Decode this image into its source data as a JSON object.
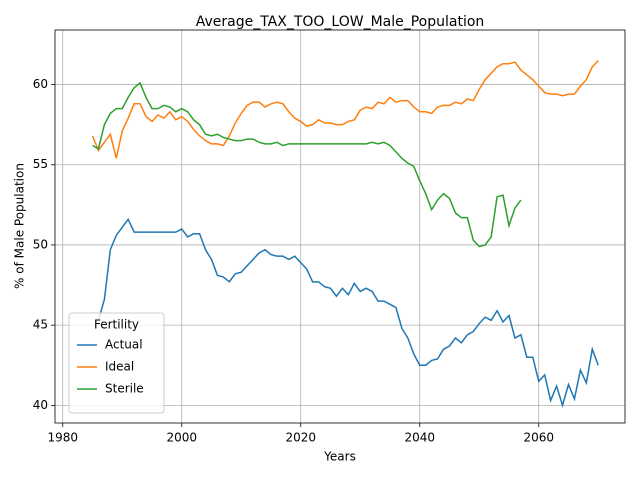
{
  "chart_data": {
    "type": "line",
    "title": "Average_TAX_TOO_LOW_Male_Population",
    "x_label": "Years",
    "y_label": "% of Male Population",
    "legend_title": "Fertility",
    "legend_position": "lower left",
    "grid": true,
    "xlim": [
      1978.7,
      2074.5
    ],
    "ylim": [
      38.9,
      63.4
    ],
    "xticks": [
      1980,
      2000,
      2020,
      2040,
      2060
    ],
    "yticks": [
      40,
      45,
      50,
      55,
      60
    ],
    "x": [
      1985,
      1986,
      1987,
      1988,
      1989,
      1990,
      1991,
      1992,
      1993,
      1994,
      1995,
      1996,
      1997,
      1998,
      1999,
      2000,
      2001,
      2002,
      2003,
      2004,
      2005,
      2006,
      2007,
      2008,
      2009,
      2010,
      2011,
      2012,
      2013,
      2014,
      2015,
      2016,
      2017,
      2018,
      2019,
      2020,
      2021,
      2022,
      2023,
      2024,
      2025,
      2026,
      2027,
      2028,
      2029,
      2030,
      2031,
      2032,
      2033,
      2034,
      2035,
      2036,
      2037,
      2038,
      2039,
      2040,
      2041,
      2042,
      2043,
      2044,
      2045,
      2046,
      2047,
      2048,
      2049,
      2050,
      2051,
      2052,
      2053,
      2054,
      2055,
      2056,
      2057,
      2058,
      2059,
      2060,
      2061,
      2062,
      2063,
      2064,
      2065,
      2066,
      2067,
      2068,
      2069,
      2070
    ],
    "series": [
      {
        "name": "Actual",
        "color": "#1f77b4",
        "values": [
          null,
          45.3,
          46.6,
          49.7,
          50.6,
          51.1,
          51.6,
          50.8,
          50.8,
          50.8,
          50.8,
          50.8,
          50.8,
          50.8,
          50.8,
          51.0,
          50.5,
          50.7,
          50.7,
          49.7,
          49.1,
          48.1,
          48.0,
          47.7,
          48.2,
          48.3,
          48.7,
          49.1,
          49.5,
          49.7,
          49.4,
          49.3,
          49.3,
          49.1,
          49.3,
          48.9,
          48.5,
          47.7,
          47.7,
          47.4,
          47.3,
          46.8,
          47.3,
          46.9,
          47.6,
          47.1,
          47.3,
          47.1,
          46.5,
          46.5,
          46.3,
          46.1,
          44.8,
          44.2,
          43.2,
          42.5,
          42.5,
          42.8,
          42.9,
          43.5,
          43.7,
          44.2,
          43.9,
          44.4,
          44.6,
          45.1,
          45.5,
          45.3,
          45.9,
          45.2,
          45.6,
          44.2,
          44.4,
          43.0,
          43.0,
          41.5,
          41.9,
          40.3,
          41.2,
          40.0,
          41.3,
          40.4,
          42.2,
          41.4,
          43.5,
          42.5
        ]
      },
      {
        "name": "Ideal",
        "color": "#ff7f0e",
        "values": [
          56.8,
          55.9,
          56.4,
          56.9,
          55.4,
          57.1,
          57.9,
          58.8,
          58.8,
          58.0,
          57.7,
          58.1,
          57.9,
          58.3,
          57.8,
          58.0,
          57.7,
          57.2,
          56.8,
          56.5,
          56.3,
          56.3,
          56.2,
          56.8,
          57.6,
          58.2,
          58.7,
          58.9,
          58.9,
          58.6,
          58.8,
          58.9,
          58.8,
          58.3,
          57.9,
          57.7,
          57.4,
          57.5,
          57.8,
          57.6,
          57.6,
          57.5,
          57.5,
          57.7,
          57.8,
          58.4,
          58.6,
          58.5,
          58.9,
          58.8,
          59.2,
          58.9,
          59.0,
          59.0,
          58.6,
          58.3,
          58.3,
          58.2,
          58.6,
          58.7,
          58.7,
          58.9,
          58.8,
          59.1,
          59.0,
          59.7,
          60.3,
          60.7,
          61.1,
          61.3,
          61.3,
          61.4,
          60.9,
          60.6,
          60.3,
          59.9,
          59.5,
          59.4,
          59.4,
          59.3,
          59.4,
          59.4,
          59.9,
          60.3,
          61.1,
          61.5
        ]
      },
      {
        "name": "Sterile",
        "color": "#2ca02c",
        "values": [
          56.2,
          56.0,
          57.5,
          58.2,
          58.5,
          58.5,
          59.2,
          59.8,
          60.1,
          59.2,
          58.5,
          58.5,
          58.7,
          58.6,
          58.3,
          58.5,
          58.3,
          57.8,
          57.5,
          56.9,
          56.8,
          56.9,
          56.7,
          56.6,
          56.5,
          56.5,
          56.6,
          56.6,
          56.4,
          56.3,
          56.3,
          56.4,
          56.2,
          56.3,
          56.3,
          56.3,
          56.3,
          56.3,
          56.3,
          56.3,
          56.3,
          56.3,
          56.3,
          56.3,
          56.3,
          56.3,
          56.3,
          56.4,
          56.3,
          56.4,
          56.2,
          55.8,
          55.4,
          55.1,
          54.9,
          54.0,
          53.2,
          52.2,
          52.8,
          53.2,
          52.9,
          52.0,
          51.7,
          51.7,
          50.3,
          49.9,
          50.0,
          50.5,
          53.0,
          53.1,
          51.2,
          52.3,
          52.8,
          null,
          null,
          null,
          null,
          null,
          null,
          null,
          null,
          null,
          null,
          null,
          null,
          null
        ]
      }
    ]
  }
}
